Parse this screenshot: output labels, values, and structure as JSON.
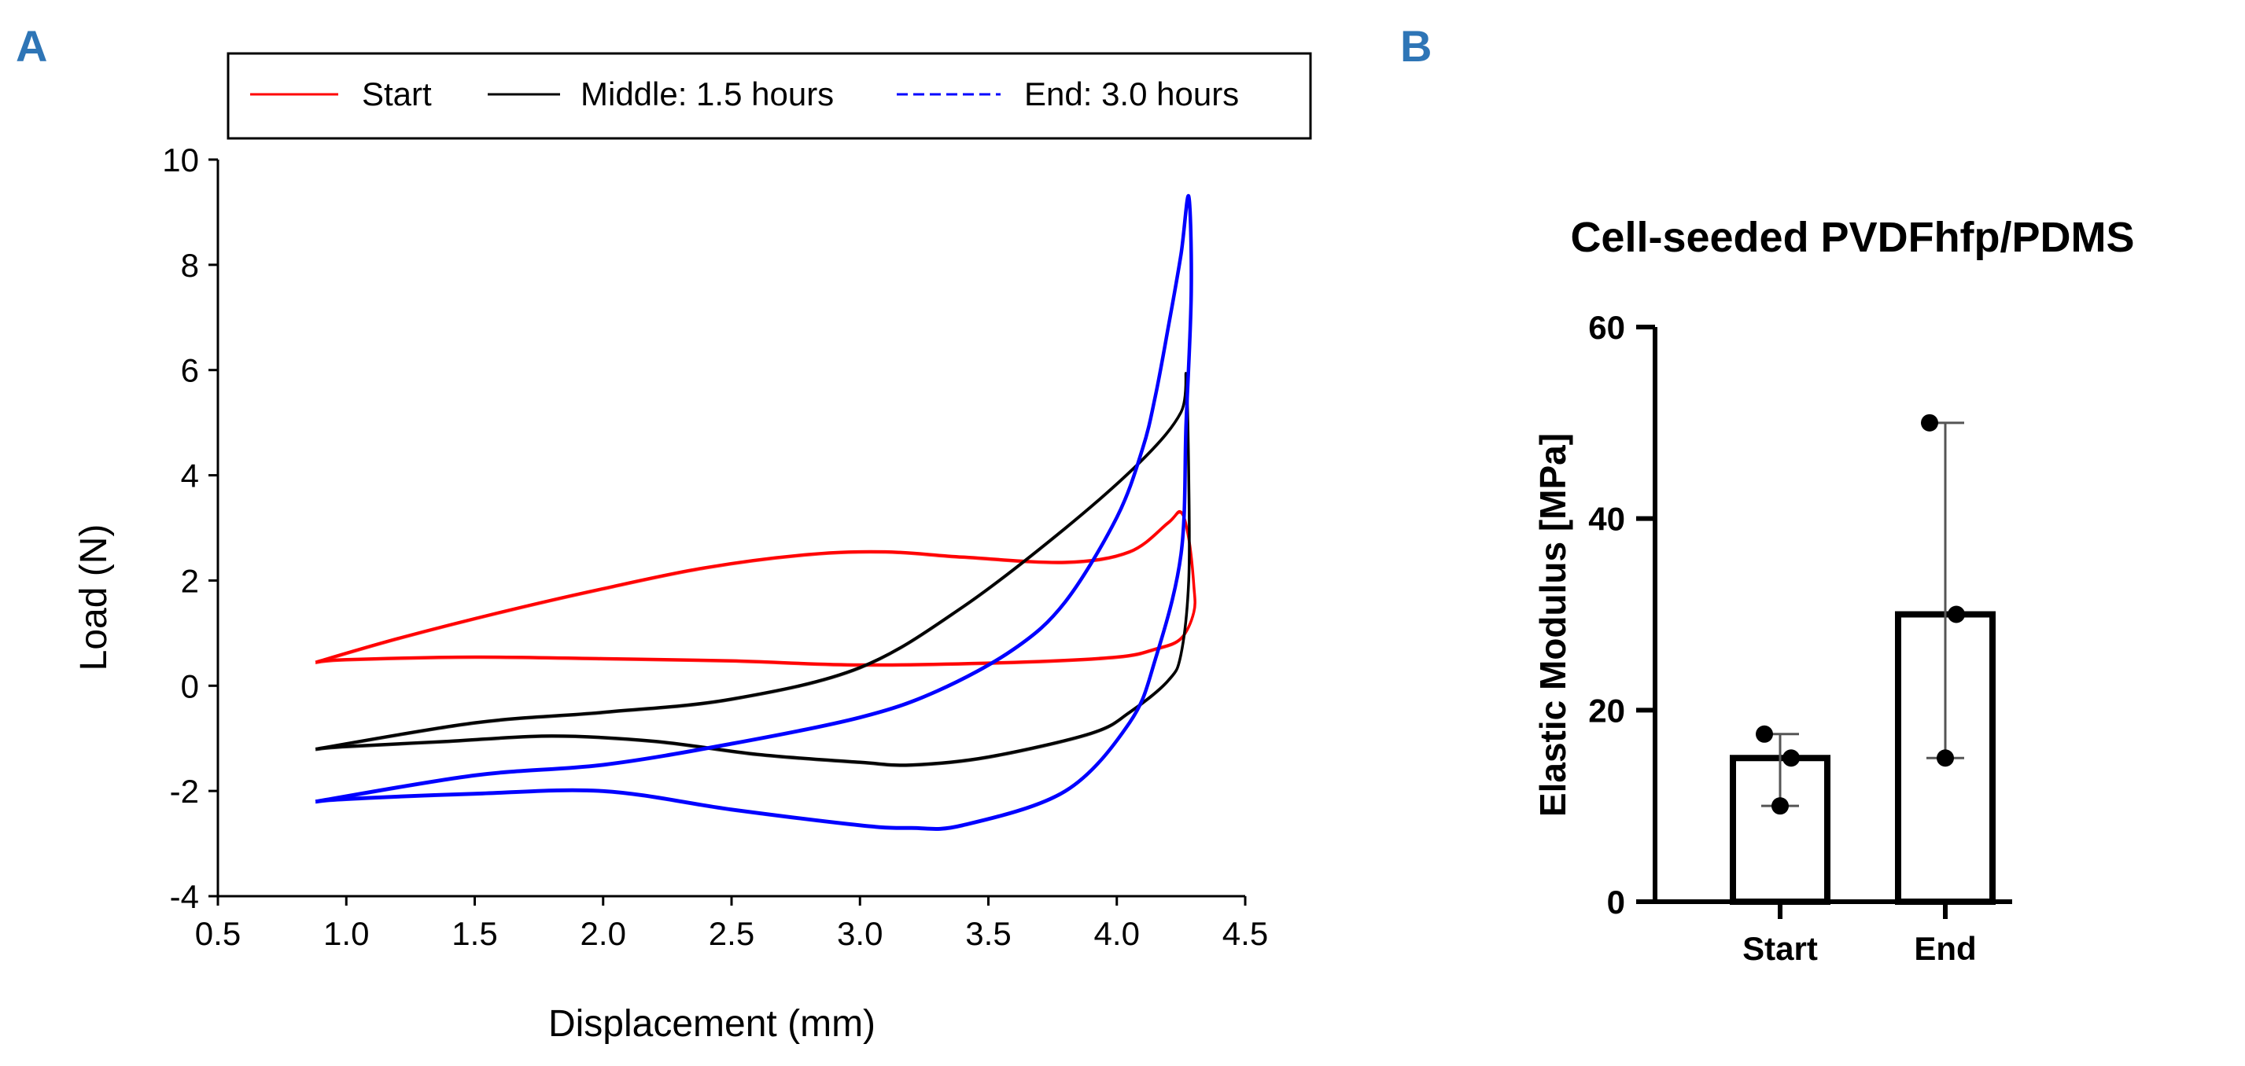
{
  "panels": {
    "a": "A",
    "b": "B"
  },
  "chart_data": [
    {
      "type": "line",
      "panel": "A",
      "title": "",
      "xlabel": "Displacement (mm)",
      "ylabel": "Load (N)",
      "xlim": [
        0.5,
        4.5
      ],
      "ylim": [
        -4,
        10
      ],
      "xticks": [
        "0.5",
        "1.0",
        "1.5",
        "2.0",
        "2.5",
        "3.0",
        "3.5",
        "4.0",
        "4.5"
      ],
      "yticks": [
        "-4",
        "-2",
        "0",
        "2",
        "4",
        "6",
        "8",
        "10"
      ],
      "grid": false,
      "legend_position": "top",
      "series": [
        {
          "name": "Start",
          "color": "#ff0000",
          "dash": "solid",
          "x": [
            0.88,
            1.2,
            1.6,
            2.0,
            2.4,
            2.8,
            3.1,
            3.4,
            3.8,
            4.05,
            4.2,
            4.25,
            4.28,
            4.3,
            4.3,
            4.25,
            4.15,
            4.0,
            3.6,
            3.0,
            2.5,
            2.0,
            1.5,
            1.0,
            0.88
          ],
          "y": [
            0.45,
            0.9,
            1.4,
            1.85,
            2.25,
            2.5,
            2.55,
            2.45,
            2.35,
            2.55,
            3.1,
            3.3,
            2.8,
            1.9,
            1.4,
            0.9,
            0.7,
            0.55,
            0.45,
            0.4,
            0.48,
            0.52,
            0.55,
            0.5,
            0.45
          ]
        },
        {
          "name": "Middle: 1.5 hours",
          "color": "#000000",
          "dash": "solid",
          "x": [
            0.88,
            1.5,
            2.0,
            2.5,
            3.0,
            3.4,
            3.8,
            4.1,
            4.25,
            4.27,
            4.28,
            4.28,
            4.25,
            4.2,
            4.05,
            3.9,
            3.5,
            3.2,
            3.0,
            2.6,
            2.2,
            1.8,
            1.4,
            1.0,
            0.88
          ],
          "y": [
            -1.2,
            -0.7,
            -0.5,
            -0.25,
            0.35,
            1.5,
            3.0,
            4.3,
            5.2,
            5.9,
            4.0,
            2.0,
            0.6,
            0.1,
            -0.5,
            -0.9,
            -1.35,
            -1.5,
            -1.45,
            -1.3,
            -1.05,
            -0.95,
            -1.05,
            -1.15,
            -1.2
          ]
        },
        {
          "name": "End: 3.0 hours",
          "color": "#0000ff",
          "dash": "dashed",
          "x": [
            0.88,
            1.5,
            2.0,
            2.5,
            3.0,
            3.3,
            3.6,
            3.8,
            4.0,
            4.1,
            4.15,
            4.2,
            4.25,
            4.28,
            4.29,
            4.27,
            4.25,
            4.15,
            4.05,
            3.8,
            3.4,
            3.2,
            3.0,
            2.5,
            2.0,
            1.5,
            1.0,
            0.88
          ],
          "y": [
            -2.2,
            -1.7,
            -1.5,
            -1.1,
            -0.6,
            -0.1,
            0.7,
            1.6,
            3.2,
            4.5,
            5.5,
            6.8,
            8.2,
            9.3,
            7.5,
            5.0,
            2.5,
            0.5,
            -0.7,
            -2.0,
            -2.65,
            -2.7,
            -2.65,
            -2.35,
            -2.0,
            -2.05,
            -2.15,
            -2.2
          ]
        }
      ]
    },
    {
      "type": "bar",
      "panel": "B",
      "title": "Cell-seeded PVDFhfp/PDMS",
      "xlabel": "",
      "ylabel": "Elastic Modulus [MPa]",
      "ylim": [
        0,
        60
      ],
      "yticks": [
        "0",
        "20",
        "40",
        "60"
      ],
      "categories": [
        "Start",
        "End"
      ],
      "values": [
        15,
        30
      ],
      "error_low": [
        10,
        15
      ],
      "error_high": [
        17.5,
        50
      ],
      "points": [
        [
          17.5,
          15,
          10
        ],
        [
          50,
          30,
          15
        ]
      ],
      "grid": false
    }
  ]
}
